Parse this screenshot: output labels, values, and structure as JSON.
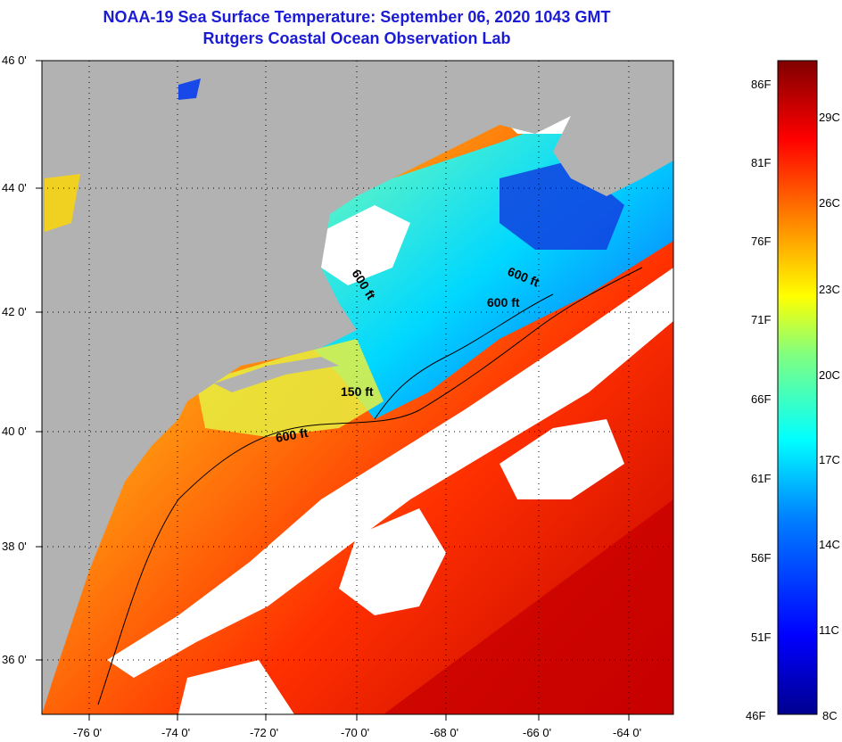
{
  "header": {
    "title": "NOAA-19 Sea Surface Temperature:  September 06, 2020 1043 GMT",
    "subtitle": "Rutgers Coastal Ocean Observation Lab"
  },
  "axes": {
    "lat_labels": [
      "46 0'",
      "44 0'",
      "42 0'",
      "40 0'",
      "38 0'",
      "36 0'"
    ],
    "lon_labels": [
      "-76 0'",
      "-74 0'",
      "-72 0'",
      "-70 0'",
      "-68 0'",
      "-66 0'",
      "-64 0'"
    ]
  },
  "contours": {
    "labels": [
      "600 ft",
      "600 ft",
      "600 ft",
      "150 ft",
      "600 ft"
    ]
  },
  "colorbar": {
    "fahrenheit": [
      "86F",
      "81F",
      "76F",
      "71F",
      "66F",
      "61F",
      "56F",
      "51F",
      "46F"
    ],
    "celsius": [
      "29C",
      "26C",
      "23C",
      "20C",
      "17C",
      "14C",
      "11C",
      "8C"
    ],
    "range_celsius": [
      8,
      30
    ],
    "colors": [
      "#00008f",
      "#0000ff",
      "#0080ff",
      "#00ffff",
      "#80ff80",
      "#ffff00",
      "#ff8000",
      "#ff0000",
      "#800000"
    ]
  },
  "palette": {
    "land": "#b2b2b2",
    "cloud": "#ffffff",
    "title_color": "#1b1bd6"
  }
}
